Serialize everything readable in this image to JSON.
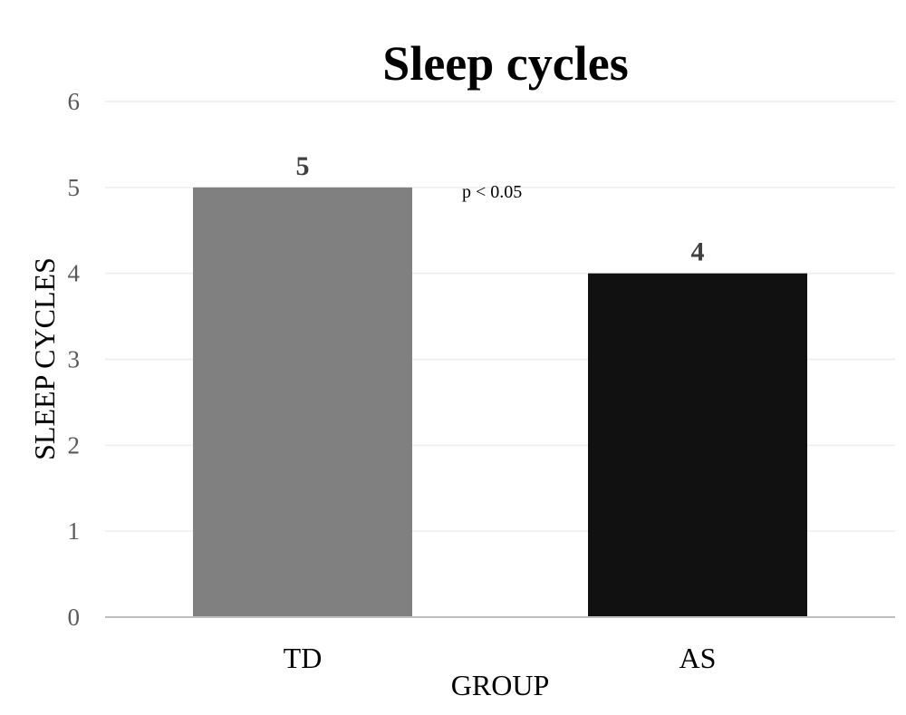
{
  "chart_data": {
    "type": "bar",
    "title": "Sleep cycles",
    "xlabel": "GROUP",
    "ylabel": "SLEEP CYCLES",
    "categories": [
      "TD",
      "AS"
    ],
    "values": [
      5,
      4
    ],
    "data_labels": [
      "5",
      "4"
    ],
    "bar_colors": [
      "#808080",
      "#111111"
    ],
    "ylim": [
      0,
      6
    ],
    "yticks": [
      0,
      1,
      2,
      3,
      4,
      5,
      6
    ],
    "grid": true,
    "legend": "none",
    "annotation": "p < 0.05"
  }
}
